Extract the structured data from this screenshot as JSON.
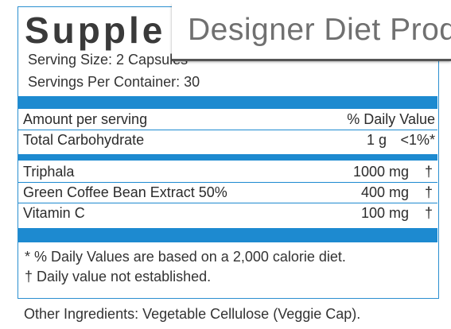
{
  "label": {
    "title": "Supple",
    "serving_size": "Serving Size: 2 Capsules",
    "servings_per_container": "Servings Per Container: 30",
    "header": {
      "left": "Amount per serving",
      "right": "% Daily Value"
    },
    "carb": {
      "name": "Total Carbohydrate",
      "amount": "1 g",
      "dv": "<1%*"
    },
    "ingredients": [
      {
        "name": "Triphala",
        "amount": "1000 mg",
        "dv": "†"
      },
      {
        "name": "Green Coffee Bean Extract 50%",
        "amount": "400 mg",
        "dv": "†"
      },
      {
        "name": "Vitamin C",
        "amount": "100 mg",
        "dv": "†"
      }
    ],
    "footnote_1": "* % Daily Values are based on a 2,000 calorie diet.",
    "footnote_2": "† Daily value not established."
  },
  "overlay_banner": {
    "text": "Designer Diet Product"
  },
  "other_ingredients": "Other Ingredients: Vegetable Cellulose (Veggie Cap).",
  "colors": {
    "accent": "#1d8ad0",
    "text": "#2b2b2b"
  }
}
